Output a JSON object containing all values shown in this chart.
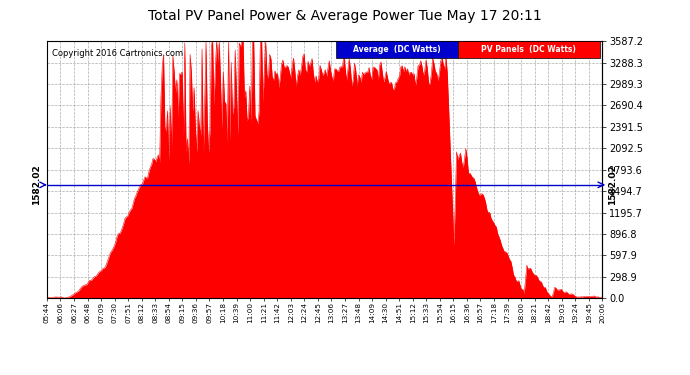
{
  "title": "Total PV Panel Power & Average Power Tue May 17 20:11",
  "copyright": "Copyright 2016 Cartronics.com",
  "avg_value": 1582.02,
  "y_ticks": [
    0.0,
    298.9,
    597.9,
    896.8,
    1195.7,
    1494.7,
    1793.6,
    2092.5,
    2391.5,
    2690.4,
    2989.3,
    3288.3,
    3587.2
  ],
  "x_labels": [
    "05:44",
    "06:06",
    "06:27",
    "06:48",
    "07:09",
    "07:30",
    "07:51",
    "08:12",
    "08:33",
    "08:54",
    "09:15",
    "09:36",
    "09:57",
    "10:18",
    "10:39",
    "11:00",
    "11:21",
    "11:42",
    "12:03",
    "12:24",
    "12:45",
    "13:06",
    "13:27",
    "13:48",
    "14:09",
    "14:30",
    "14:51",
    "15:12",
    "15:33",
    "15:54",
    "16:15",
    "16:36",
    "16:57",
    "17:18",
    "17:39",
    "18:00",
    "18:21",
    "18:42",
    "19:03",
    "19:24",
    "19:45",
    "20:06"
  ],
  "bg_color": "#ffffff",
  "plot_bg_color": "#ffffff",
  "fill_color": "#ff0000",
  "avg_line_color": "#0000cc",
  "grid_color": "#999999",
  "title_color": "#000000",
  "legend_avg_bg": "#0000cc",
  "legend_pv_bg": "#ff0000",
  "y_max": 3587.2,
  "y_min": 0.0
}
